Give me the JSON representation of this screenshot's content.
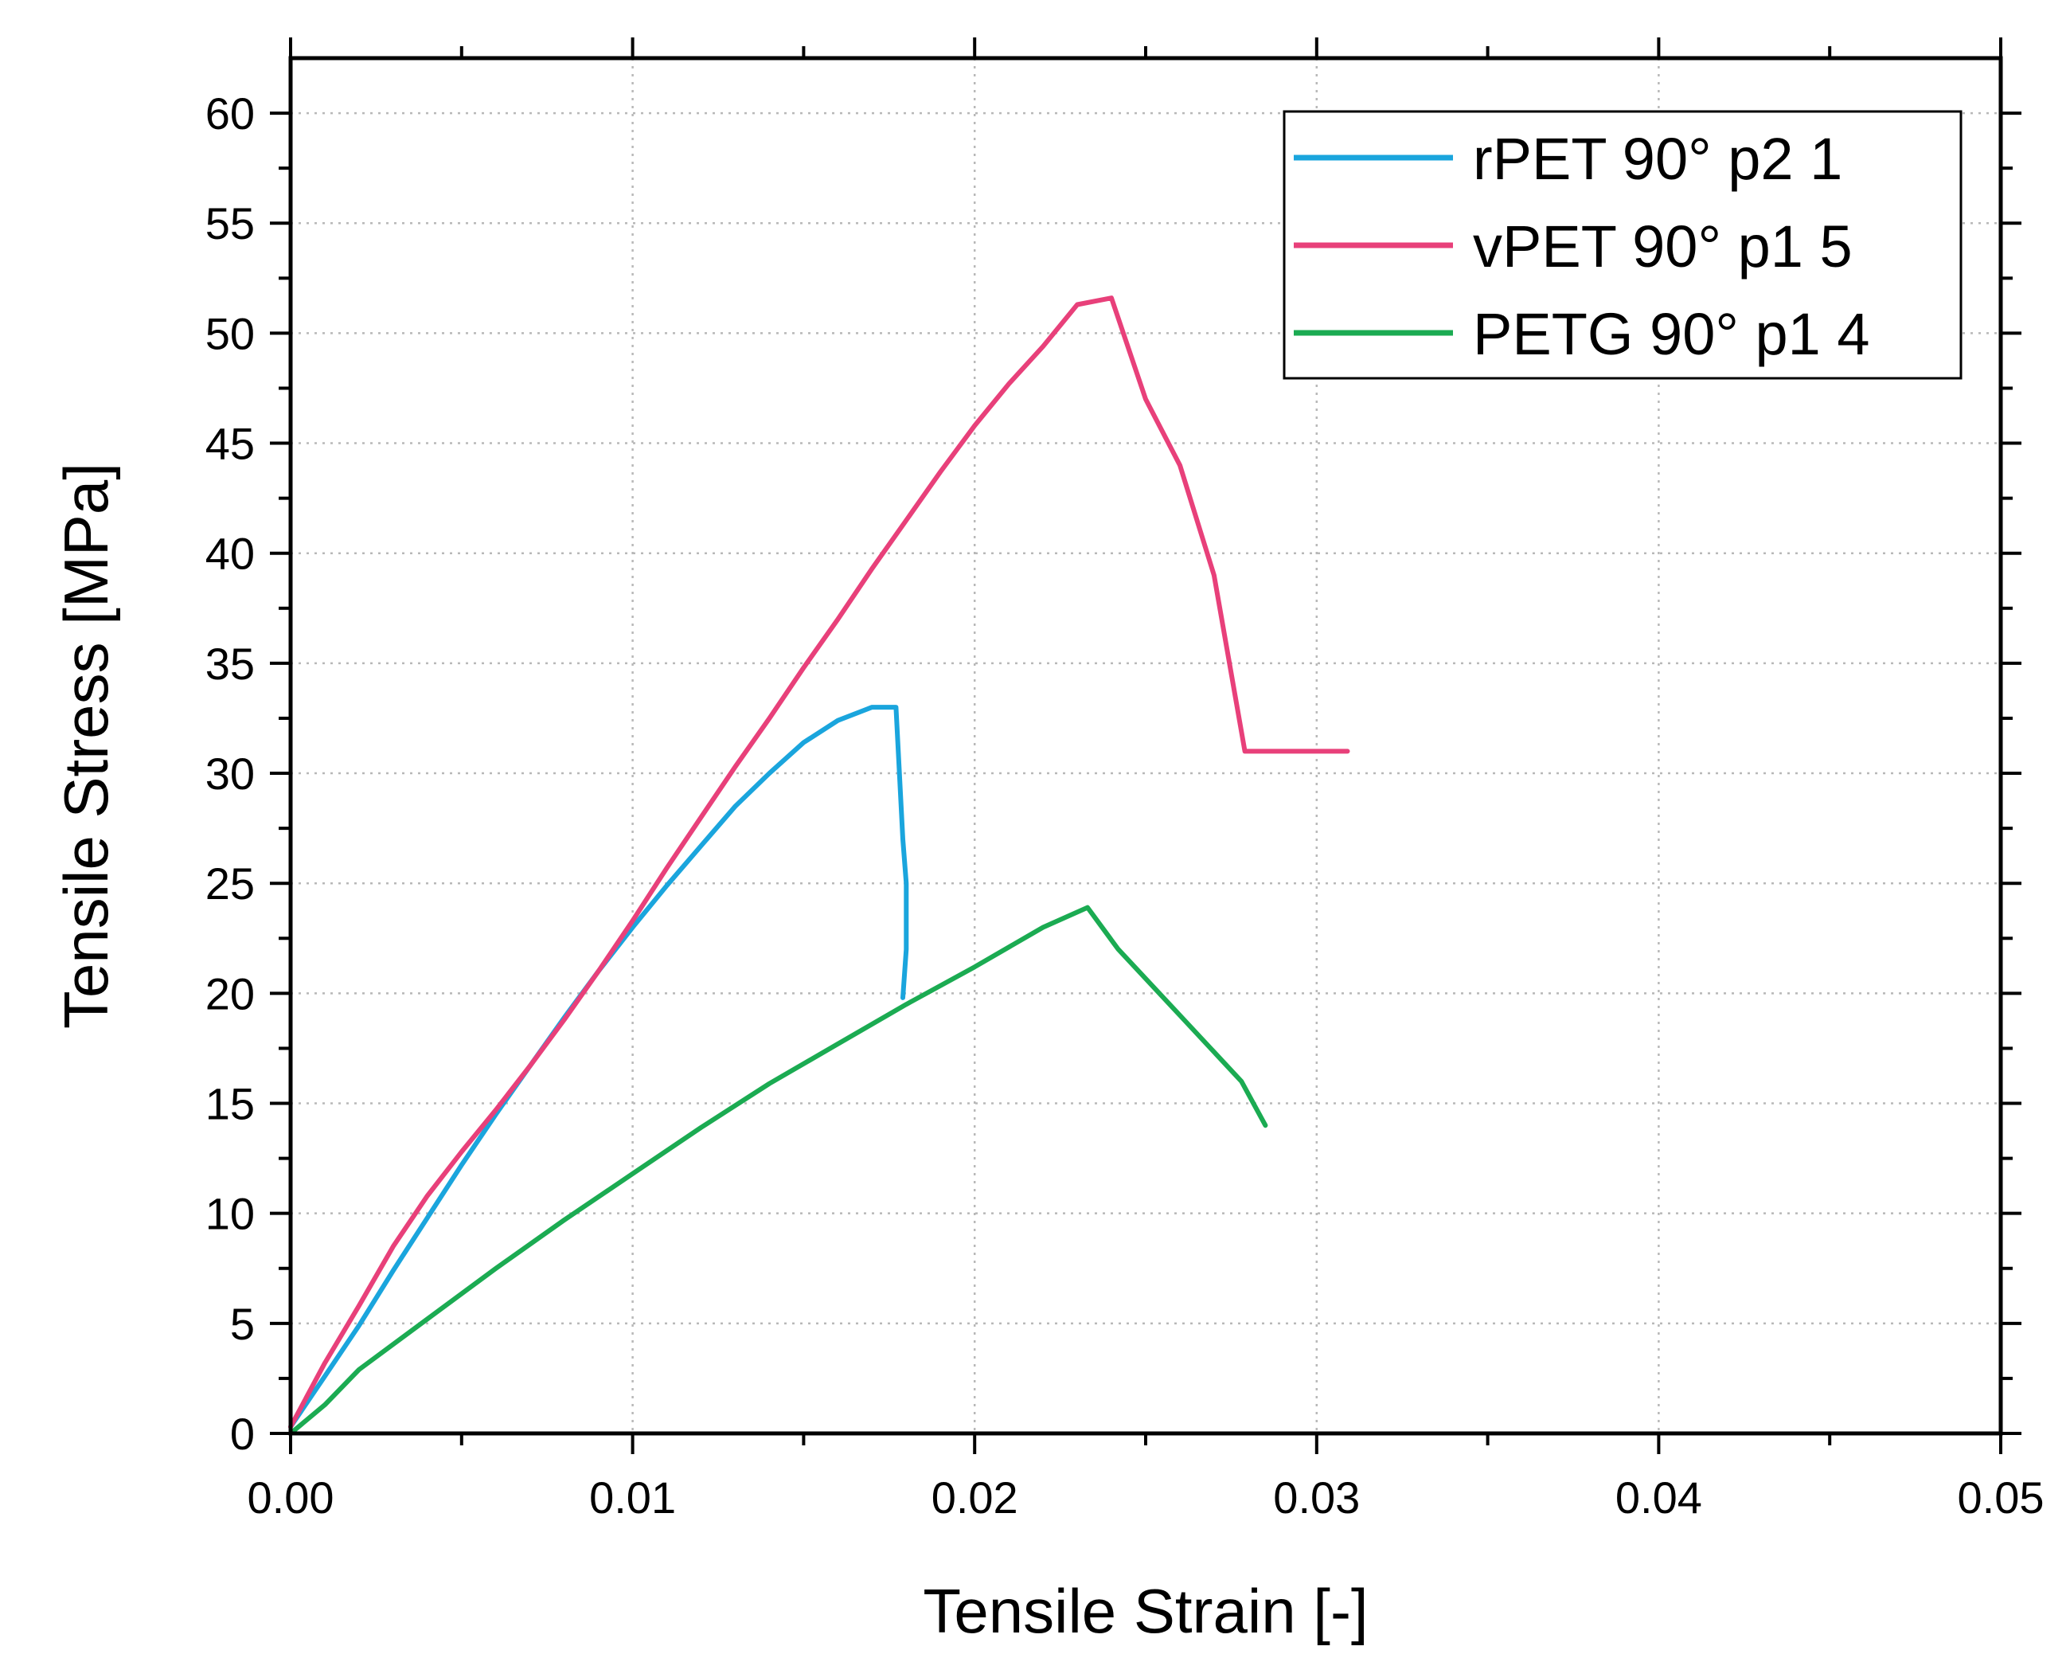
{
  "chart_data": {
    "type": "line",
    "title": "",
    "xlabel": "Tensile Strain [-]",
    "ylabel": "Tensile Stress [MPa]",
    "xlim": [
      0,
      0.05
    ],
    "ylim": [
      0,
      62.5
    ],
    "xticks": [
      0,
      0.01,
      0.02,
      0.03,
      0.04,
      0.05
    ],
    "xtick_labels": [
      "0.00",
      "0.01",
      "0.02",
      "0.03",
      "0.04",
      "0.05"
    ],
    "yticks": [
      0,
      5,
      10,
      15,
      20,
      25,
      30,
      35,
      40,
      45,
      50,
      55,
      60
    ],
    "ytick_labels": [
      "0",
      "5",
      "10",
      "15",
      "20",
      "25",
      "30",
      "35",
      "40",
      "45",
      "50",
      "55",
      "60"
    ],
    "grid": true,
    "legend_position": "top-right",
    "series": [
      {
        "name": "rPET 90° p2 1",
        "color": "#1aa5dd",
        "x": [
          0,
          0.001,
          0.002,
          0.003,
          0.004,
          0.005,
          0.006,
          0.007,
          0.008,
          0.009,
          0.01,
          0.011,
          0.012,
          0.013,
          0.014,
          0.015,
          0.016,
          0.017,
          0.0177,
          0.0178,
          0.0179,
          0.018,
          0.018,
          0.0179
        ],
        "y": [
          0.3,
          2.6,
          4.9,
          7.4,
          9.8,
          12.2,
          14.5,
          16.7,
          18.9,
          21.0,
          23.0,
          24.9,
          26.7,
          28.5,
          30.0,
          31.4,
          32.4,
          33.0,
          33.0,
          30.0,
          27.0,
          25.0,
          22.0,
          19.8
        ]
      },
      {
        "name": "vPET 90° p1 5",
        "color": "#e8407a",
        "x": [
          0,
          0.001,
          0.002,
          0.003,
          0.004,
          0.005,
          0.006,
          0.007,
          0.008,
          0.009,
          0.01,
          0.011,
          0.012,
          0.013,
          0.014,
          0.015,
          0.016,
          0.017,
          0.018,
          0.019,
          0.02,
          0.021,
          0.022,
          0.023,
          0.024,
          0.025,
          0.026,
          0.027,
          0.0279,
          0.0283,
          0.029,
          0.03,
          0.0309
        ],
        "y": [
          0.3,
          3.2,
          5.8,
          8.5,
          10.8,
          12.8,
          14.7,
          16.7,
          18.8,
          21.0,
          23.3,
          25.7,
          28.0,
          30.3,
          32.5,
          34.8,
          37.0,
          39.3,
          41.5,
          43.7,
          45.8,
          47.7,
          49.4,
          51.3,
          51.6,
          47.0,
          44.0,
          39.0,
          31.0,
          31.0,
          31.0,
          31.0,
          31.0
        ]
      },
      {
        "name": "PETG 90° p1 4",
        "color": "#1bab52",
        "x": [
          0,
          0.001,
          0.002,
          0.004,
          0.006,
          0.008,
          0.01,
          0.012,
          0.014,
          0.016,
          0.018,
          0.02,
          0.022,
          0.0233,
          0.0242,
          0.026,
          0.0278,
          0.0285
        ],
        "y": [
          0,
          1.3,
          2.9,
          5.2,
          7.5,
          9.7,
          11.8,
          13.9,
          15.9,
          17.7,
          19.5,
          21.2,
          23.0,
          23.9,
          22.0,
          19.0,
          16.0,
          14.0
        ]
      }
    ]
  }
}
